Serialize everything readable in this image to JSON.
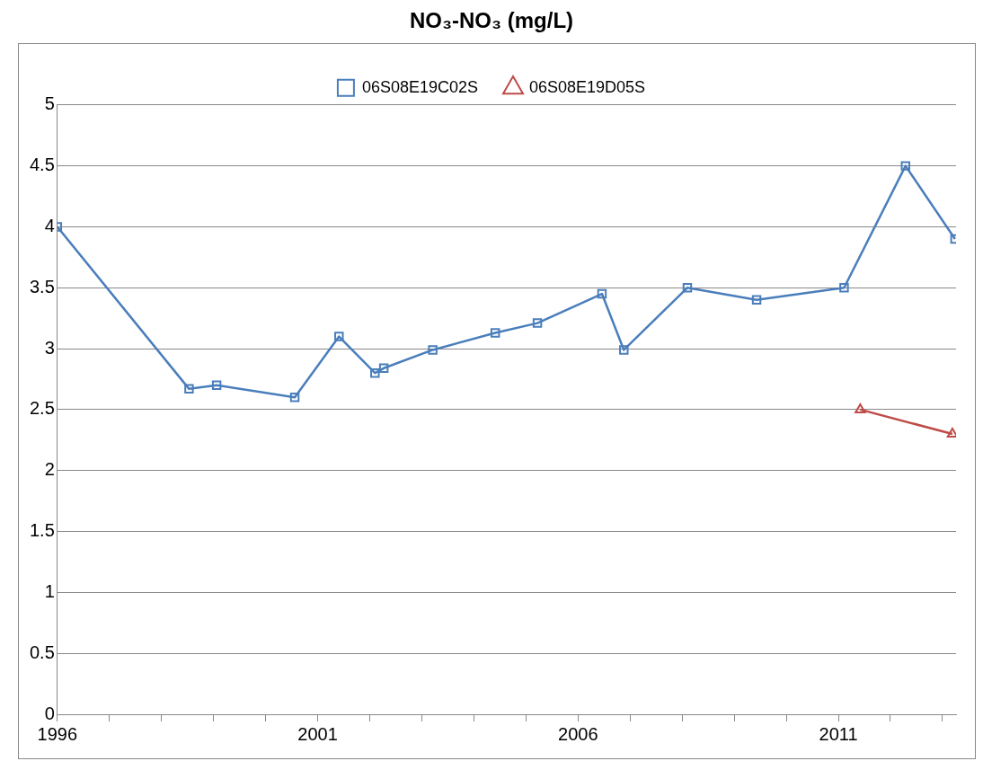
{
  "chart_data": {
    "type": "line",
    "title": "NO₃-NO₃ (mg/L)",
    "series": [
      {
        "name": "06S08E19C02S",
        "color": "#4a7ebb",
        "marker": "square",
        "x": [
          1996.0,
          1998.53,
          1999.06,
          2000.56,
          2001.41,
          2002.1,
          2002.27,
          2003.21,
          2004.41,
          2005.22,
          2006.46,
          2006.88,
          2008.1,
          2009.43,
          2011.11,
          2012.29,
          2013.24
        ],
        "values": [
          4.0,
          2.67,
          2.7,
          2.6,
          3.1,
          2.8,
          2.84,
          2.99,
          3.13,
          3.21,
          3.45,
          2.99,
          3.5,
          3.4,
          3.5,
          4.5,
          3.9
        ]
      },
      {
        "name": "06S08E19D05S",
        "color": "#be4b48",
        "marker": "triangle",
        "x": [
          2011.42,
          2013.19
        ],
        "values": [
          2.5,
          2.3
        ]
      }
    ],
    "xlim": [
      1996,
      2013.26
    ],
    "xticks": [
      1996,
      {
        "value": 1997,
        "label": null
      },
      {
        "value": 1998,
        "label": null
      },
      {
        "value": 1999,
        "label": null
      },
      {
        "value": 2000,
        "label": null
      },
      2001,
      {
        "value": 2002,
        "label": null
      },
      {
        "value": 2003,
        "label": null
      },
      {
        "value": 2004,
        "label": null
      },
      {
        "value": 2005,
        "label": null
      },
      2006,
      {
        "value": 2007,
        "label": null
      },
      {
        "value": 2008,
        "label": null
      },
      {
        "value": 2009,
        "label": null
      },
      {
        "value": 2010,
        "label": null
      },
      2011,
      {
        "value": 2012,
        "label": null
      },
      {
        "value": 2013,
        "label": null
      }
    ],
    "ylim": [
      0,
      5
    ],
    "yticks": [
      0,
      0.5,
      1,
      1.5,
      2,
      2.5,
      3,
      3.5,
      4,
      4.5,
      5
    ],
    "grid": "y",
    "legend": "top",
    "line_style": "solid"
  }
}
